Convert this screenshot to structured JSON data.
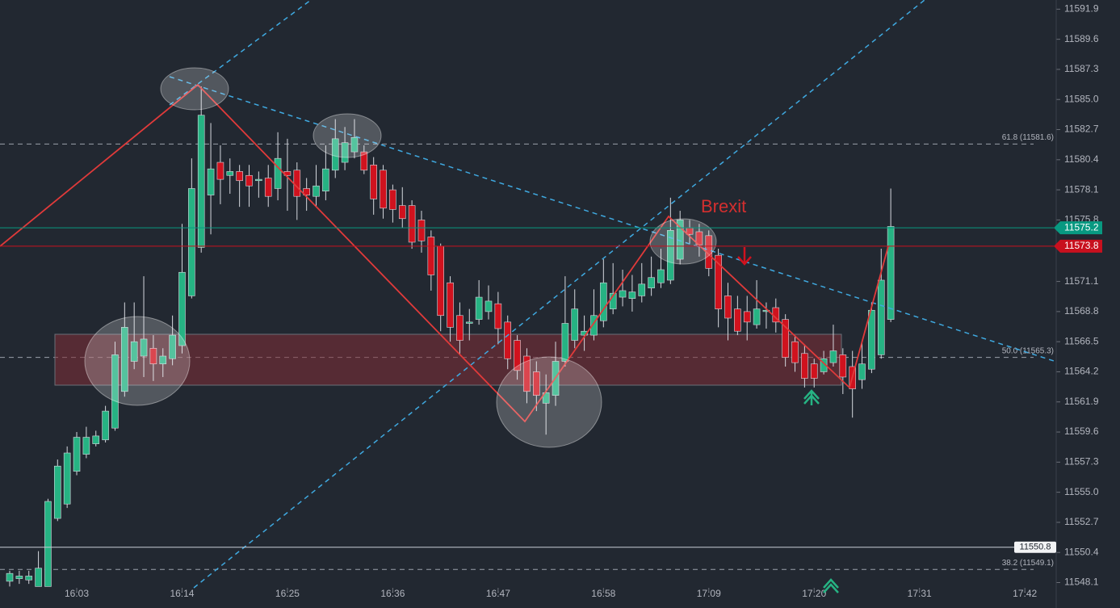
{
  "chart_data": {
    "type": "candlestick",
    "categories": [
      null,
      null,
      null,
      null,
      null,
      null,
      null,
      "16:03",
      null,
      null,
      null,
      null,
      null,
      null,
      null,
      null,
      null,
      null,
      "16:14",
      null,
      null,
      null,
      null,
      null,
      null,
      null,
      null,
      null,
      null,
      "16:25",
      null,
      null,
      null,
      null,
      null,
      null,
      null,
      null,
      null,
      null,
      "16:36",
      null,
      null,
      null,
      null,
      null,
      null,
      null,
      null,
      null,
      null,
      "16:47",
      null,
      null,
      null,
      null,
      null,
      null,
      null,
      null,
      null,
      null,
      "16:58",
      null,
      null,
      null,
      null,
      null,
      null,
      null,
      null,
      null,
      null,
      "17:09",
      null,
      null,
      null,
      null,
      null,
      null,
      null,
      null,
      null,
      null,
      "17:20",
      null,
      null,
      null,
      null,
      null,
      null,
      null,
      null,
      null,
      null,
      "17:31",
      null,
      null,
      null,
      null,
      null,
      null,
      null,
      null,
      null,
      null,
      "17:42"
    ],
    "open": [
      11548.2,
      11548.4,
      11548.3,
      11547.8,
      11547.8,
      11553.0,
      11554.1,
      11556.6,
      11557.9,
      11558.7,
      11559.0,
      11559.9,
      11562.7,
      11565.0,
      11565.4,
      11566.0,
      11564.8,
      11565.2,
      11566.2,
      11570.0,
      11573.7,
      11577.7,
      11580.2,
      11579.2,
      11579.5,
      11579.2,
      11578.8,
      11579.0,
      11578.2,
      11579.5,
      11579.6,
      11578.2,
      11577.6,
      11578.0,
      11579.6,
      11580.2,
      11581.0,
      11581.0,
      11580.0,
      11579.6,
      11578.1,
      11576.9,
      11576.9,
      11575.8,
      11574.5,
      11573.8,
      11571.0,
      11568.5,
      11567.9,
      11568.2,
      11568.8,
      11569.4,
      11568.0,
      11566.6,
      11565.4,
      11564.2,
      11561.8,
      11562.4,
      11565.0,
      11566.6,
      11567.0,
      11567.0,
      11568.1,
      11569.0,
      11569.9,
      11569.8,
      11570.0,
      11570.6,
      11571.0,
      11571.2,
      11572.8,
      11575.2,
      11574.9,
      11574.6,
      11573.1,
      11570.0,
      11569.0,
      11568.8,
      11567.8,
      11568.8,
      11569.1,
      11568.2,
      11566.5,
      11565.6,
      11564.8,
      11564.2,
      11564.9,
      11565.5,
      11564.6,
      11563.6,
      11564.4,
      11565.5,
      11568.2,
      null,
      null,
      null,
      null,
      null,
      null,
      null,
      null,
      null,
      null,
      null,
      null,
      null,
      null
    ],
    "high": [
      11549.0,
      11549.0,
      11549.0,
      11550.5,
      11554.5,
      11557.5,
      11558.5,
      11559.6,
      11560.0,
      11559.7,
      11561.6,
      11566.5,
      11569.5,
      11569.5,
      11571.5,
      11567.0,
      11566.0,
      11568.5,
      11575.5,
      11580.5,
      11586.0,
      11583.2,
      11581.5,
      11580.5,
      11580.0,
      11580.0,
      11579.5,
      11580.0,
      11582.5,
      11582.0,
      11580.2,
      11579.0,
      11580.0,
      11581.5,
      11583.5,
      11582.9,
      11583.5,
      11581.5,
      11580.6,
      11580.0,
      11578.5,
      11578.3,
      11577.3,
      11576.5,
      11575.0,
      11574.0,
      11571.5,
      11569.5,
      11569.0,
      11571.2,
      11570.8,
      11570.3,
      11568.5,
      11567.0,
      11566.0,
      11565.0,
      11564.0,
      11566.5,
      11571.5,
      11570.5,
      11568.5,
      11570.5,
      11572.8,
      11572.5,
      11572.0,
      11571.6,
      11572.5,
      11573.0,
      11573.6,
      11577.5,
      11576.5,
      11575.8,
      11575.5,
      11575.0,
      11573.6,
      11571.0,
      11570.0,
      11570.0,
      11571.2,
      11569.5,
      11569.8,
      11568.6,
      11567.0,
      11566.2,
      11565.2,
      11565.8,
      11567.8,
      11566.0,
      11565.8,
      11566.5,
      11569.5,
      11573.6,
      11578.2,
      null,
      null,
      null,
      null,
      null,
      null,
      null,
      null,
      null,
      null,
      null,
      null,
      null,
      null
    ],
    "low": [
      11547.8,
      11548.0,
      11548.0,
      11547.8,
      11547.8,
      11552.8,
      11553.8,
      11556.3,
      11557.6,
      11558.5,
      11558.8,
      11559.7,
      11562.3,
      11564.4,
      11563.8,
      11563.5,
      11563.8,
      11564.7,
      11565.6,
      11569.8,
      11573.3,
      11574.7,
      11577.0,
      11577.8,
      11576.8,
      11576.8,
      11577.5,
      11576.8,
      11577.3,
      11576.5,
      11575.8,
      11576.5,
      11576.8,
      11577.3,
      11579.0,
      11579.6,
      11580.5,
      11579.3,
      11576.2,
      11575.9,
      11575.6,
      11575.2,
      11573.6,
      11573.3,
      11570.4,
      11567.3,
      11566.5,
      11565.5,
      11566.6,
      11567.8,
      11568.2,
      11566.3,
      11564.4,
      11563.6,
      11561.8,
      11561.2,
      11559.4,
      11561.6,
      11564.6,
      11566.0,
      11565.8,
      11566.6,
      11567.6,
      11568.6,
      11569.2,
      11568.8,
      11569.5,
      11570.0,
      11570.6,
      11570.9,
      11572.4,
      11574.0,
      11573.0,
      11571.5,
      11567.6,
      11566.6,
      11567.0,
      11566.6,
      11567.5,
      11567.5,
      11567.2,
      11564.6,
      11564.2,
      11563.0,
      11563.0,
      11564.0,
      11564.6,
      11562.5,
      11560.7,
      11562.9,
      11564.1,
      11565.2,
      11568.0,
      null,
      null,
      null,
      null,
      null,
      null,
      null,
      null,
      null,
      null,
      null,
      null,
      null,
      null
    ],
    "close": [
      11548.8,
      11548.6,
      11548.6,
      11549.2,
      11554.3,
      11557.0,
      11558.0,
      11559.2,
      11559.2,
      11559.3,
      11561.2,
      11565.5,
      11567.6,
      11566.5,
      11566.7,
      11564.8,
      11565.4,
      11567.0,
      11571.8,
      11578.2,
      11583.8,
      11579.7,
      11578.9,
      11579.5,
      11578.8,
      11578.4,
      11578.9,
      11577.6,
      11580.5,
      11579.2,
      11577.6,
      11577.7,
      11578.4,
      11579.7,
      11582.0,
      11581.7,
      11582.1,
      11579.6,
      11577.4,
      11576.7,
      11576.6,
      11575.9,
      11574.1,
      11574.2,
      11571.6,
      11568.5,
      11567.6,
      11566.6,
      11568.0,
      11569.9,
      11569.6,
      11567.5,
      11565.2,
      11564.3,
      11562.7,
      11562.4,
      11562.6,
      11565.0,
      11567.9,
      11569.0,
      11567.3,
      11568.5,
      11571.0,
      11570.2,
      11570.4,
      11570.3,
      11570.9,
      11571.4,
      11572.0,
      11575.0,
      11575.8,
      11574.7,
      11573.9,
      11572.1,
      11569.0,
      11568.3,
      11567.3,
      11568.0,
      11569.0,
      11568.9,
      11568.0,
      11565.3,
      11564.9,
      11563.7,
      11563.7,
      11565.2,
      11565.8,
      11563.8,
      11562.9,
      11564.8,
      11568.9,
      11571.2,
      11575.3,
      null,
      null,
      null,
      null,
      null,
      null,
      null,
      null,
      null,
      null,
      null,
      null,
      null,
      null
    ],
    "up_color": "#26b383",
    "down_color": "#d0121e",
    "ylim": [
      11547.7,
      11592.6
    ],
    "yticks": [
      11591.9,
      11589.6,
      11587.3,
      {
        "value": 11585,
        "label": "11585.0"
      },
      11582.7,
      11580.4,
      11578.1,
      11575.8,
      11571.1,
      11568.8,
      11566.5,
      11564.2,
      11561.9,
      11559.6,
      11557.3,
      {
        "value": 11555,
        "label": "11555.0"
      },
      11552.7,
      11550.4,
      11548.1
    ],
    "price_lines": [
      {
        "value": 11575.2,
        "color": "#089981"
      },
      {
        "value": 11573.8,
        "color": "#c8101e"
      },
      {
        "value": 11550.8,
        "color": "#c8ccd6"
      }
    ],
    "fib_levels": [
      {
        "value": 11581.6,
        "label": "61.8 (11581.6)"
      },
      {
        "value": 11565.3,
        "label": "50.0 (11565.3)"
      },
      {
        "value": 11549.1,
        "label": "38.2 (11549.1)"
      }
    ],
    "annotation": "Brexit"
  }
}
